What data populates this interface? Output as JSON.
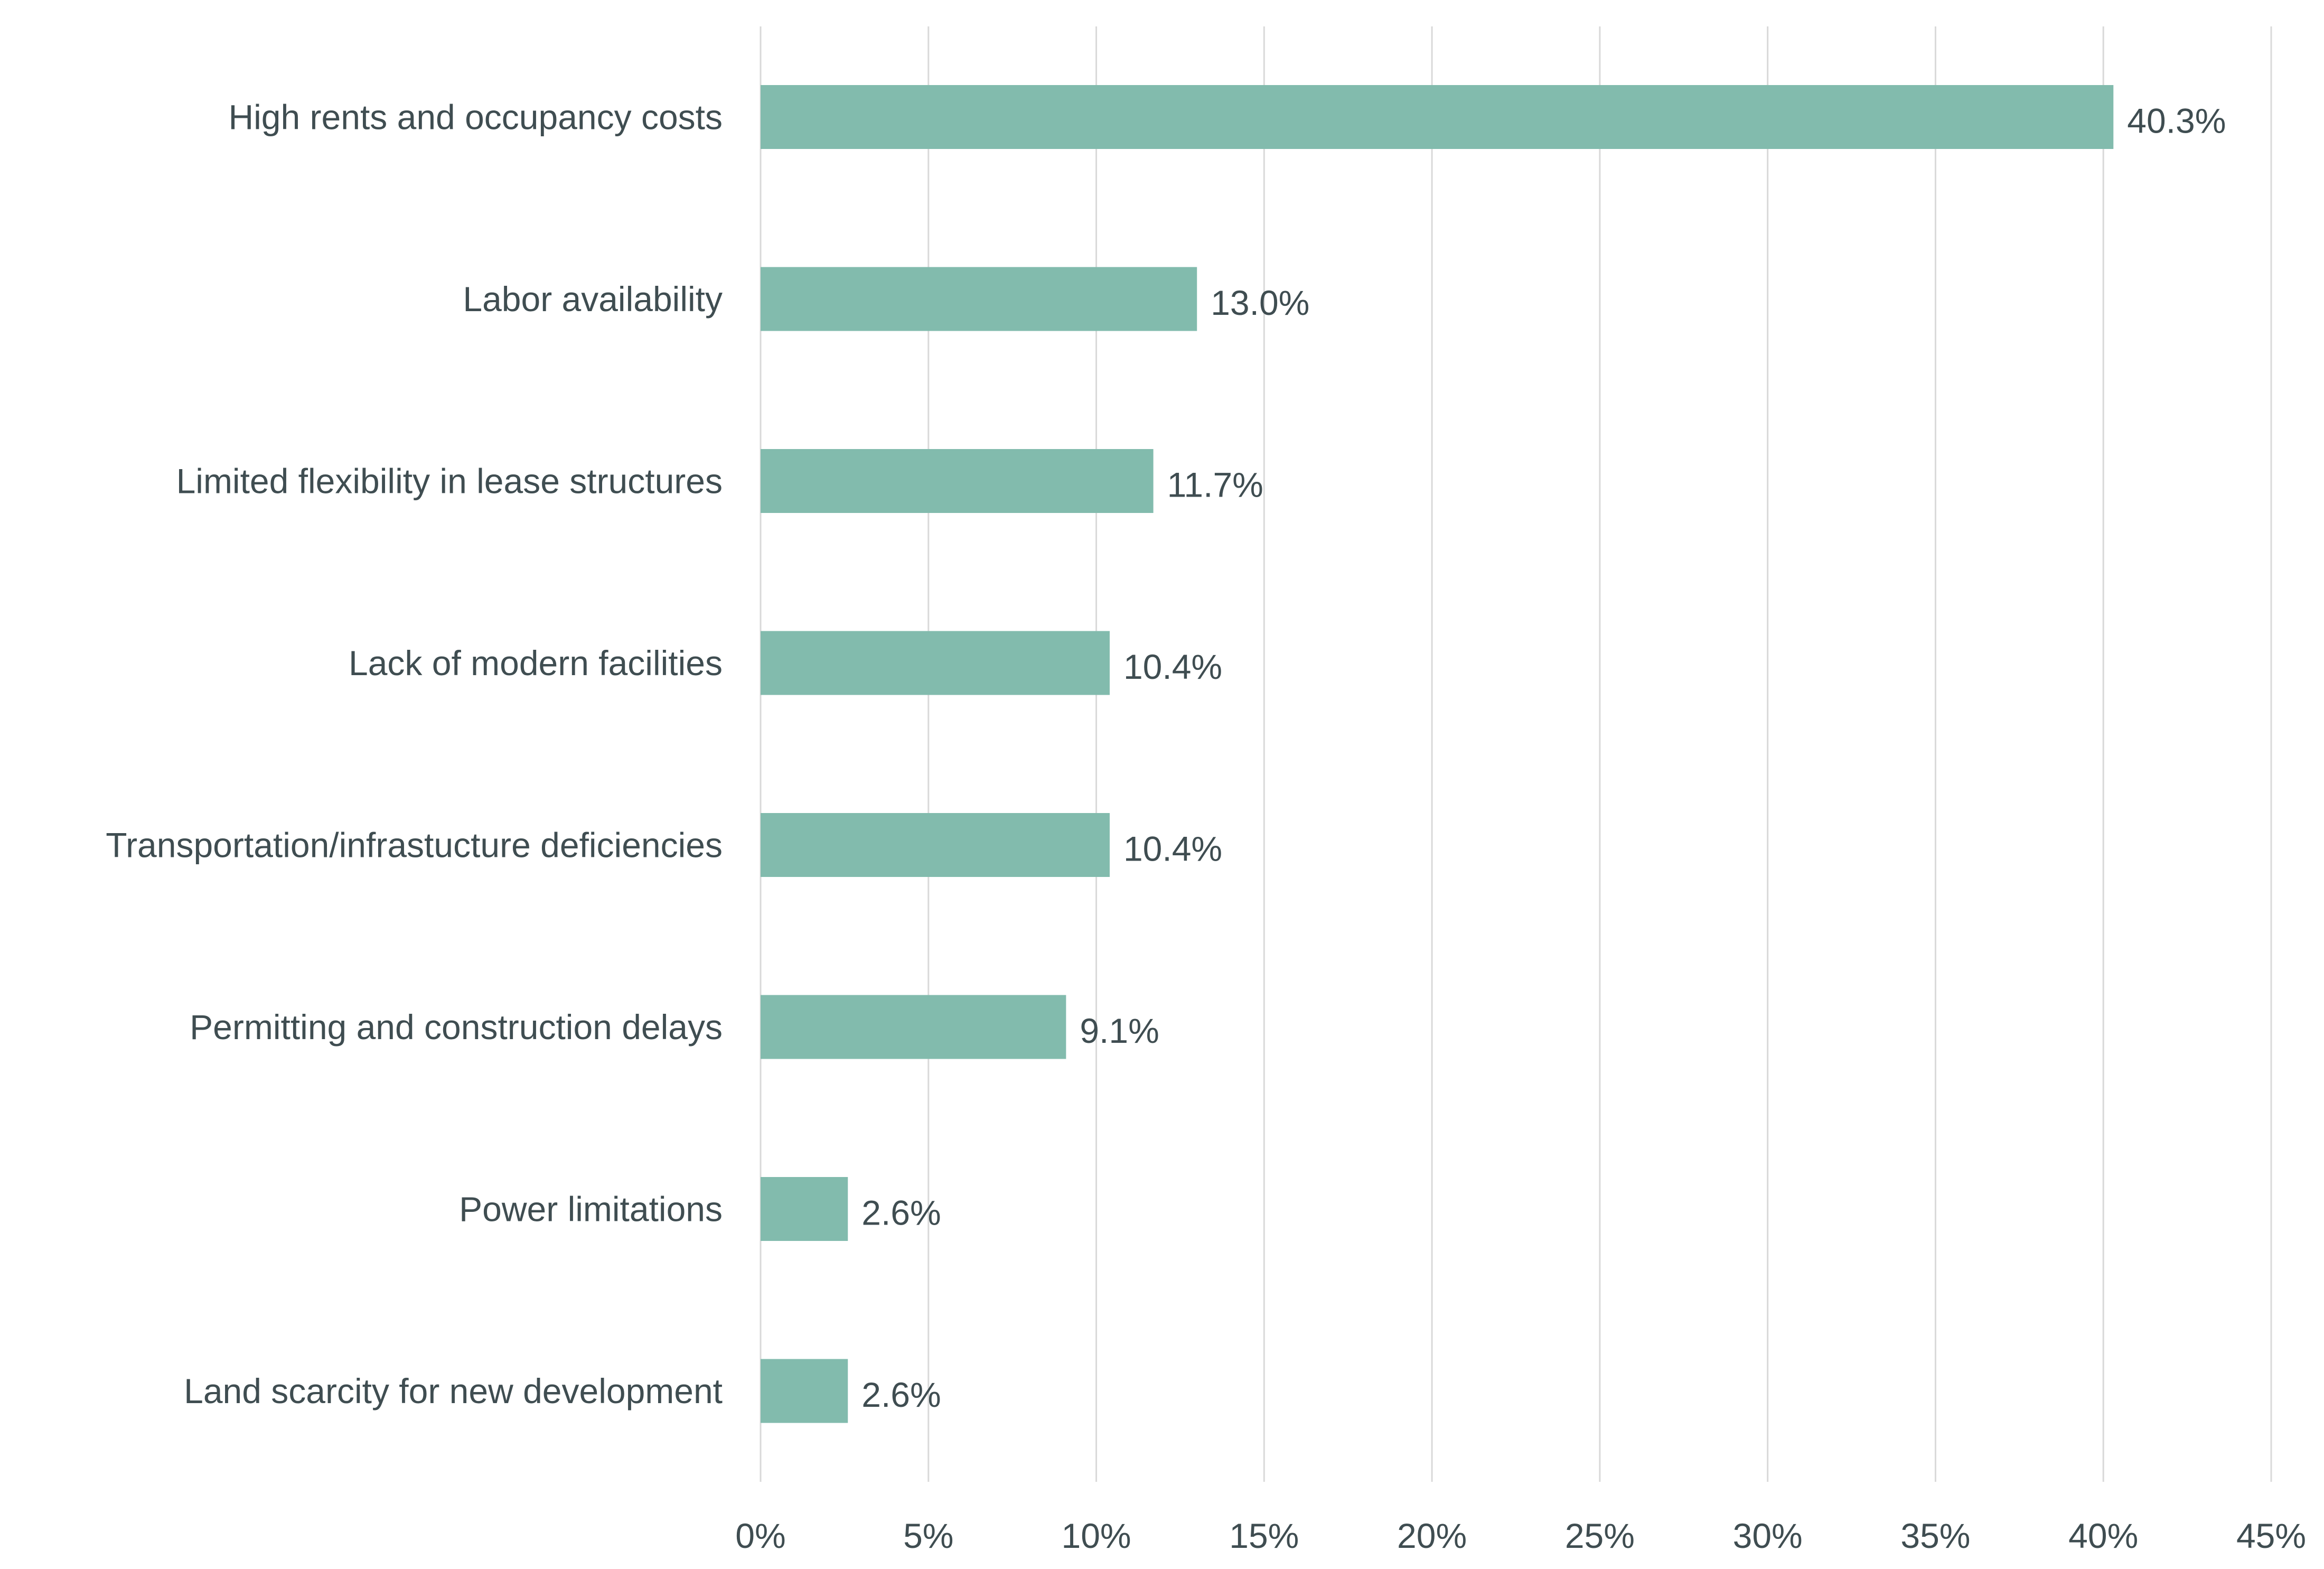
{
  "chart_data": {
    "type": "bar",
    "orientation": "horizontal",
    "categories": [
      "High rents and occupancy costs",
      "Labor availability",
      "Limited flexibility in lease structures",
      "Lack of modern facilities",
      "Transportation/infrastucture deficiencies",
      "Permitting and construction delays",
      "Power limitations",
      "Land scarcity for new development"
    ],
    "values": [
      40.3,
      13.0,
      11.7,
      10.4,
      10.4,
      9.1,
      2.6,
      2.6
    ],
    "data_labels": [
      "40.3%",
      "13.0%",
      "11.7%",
      "10.4%",
      "10.4%",
      "9.1%",
      "2.6%",
      "2.6%"
    ],
    "title": "",
    "xlabel": "",
    "ylabel": "",
    "xlim": [
      0,
      45
    ],
    "x_ticks": [
      "0%",
      "5%",
      "10%",
      "15%",
      "20%",
      "25%",
      "30%",
      "35%",
      "40%",
      "45%"
    ],
    "grid": "vertical",
    "legend": "none",
    "colors": {
      "bar": "#82bbad",
      "text": "#3f4d51",
      "grid": "#d9d9d9"
    }
  }
}
